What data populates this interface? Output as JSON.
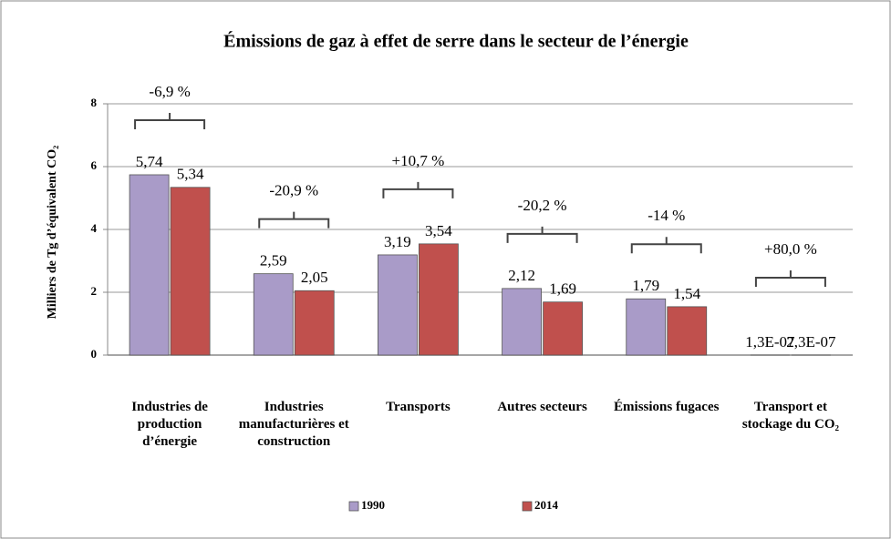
{
  "chart_data": {
    "type": "bar",
    "title": "Émissions de gaz à effet de serre dans le secteur de l’énergie",
    "y_label": "Milliers de Tg d’équivalent CO₂",
    "categories": [
      "Industries de production d’énergie",
      "Industries manufacturières et construction",
      "Transports",
      "Autres secteurs",
      "Émissions fugaces",
      "Transport et stockage du CO₂"
    ],
    "series": [
      {
        "name": "1990",
        "color": "#a99bc8",
        "values": [
          5.74,
          2.59,
          3.19,
          2.12,
          1.79,
          1.3e-07
        ],
        "value_labels": [
          "5,74",
          "2,59",
          "3,19",
          "2,12",
          "1,79",
          "1,3E-07"
        ]
      },
      {
        "name": "2014",
        "color": "#c0504d",
        "values": [
          5.34,
          2.05,
          3.54,
          1.69,
          1.54,
          2.3e-07
        ],
        "value_labels": [
          "5,34",
          "2,05",
          "3,54",
          "1,69",
          "1,54",
          "2,3E-07"
        ]
      }
    ],
    "annotations": [
      "-6,9 %",
      "-20,9 %",
      "+10,7 %",
      "-20,2 %",
      "-14 %",
      "+80,0 %"
    ],
    "ylim": [
      0,
      8
    ],
    "yticks": [
      0,
      2,
      4,
      6,
      8
    ],
    "grid": true,
    "legend": "bottom"
  }
}
